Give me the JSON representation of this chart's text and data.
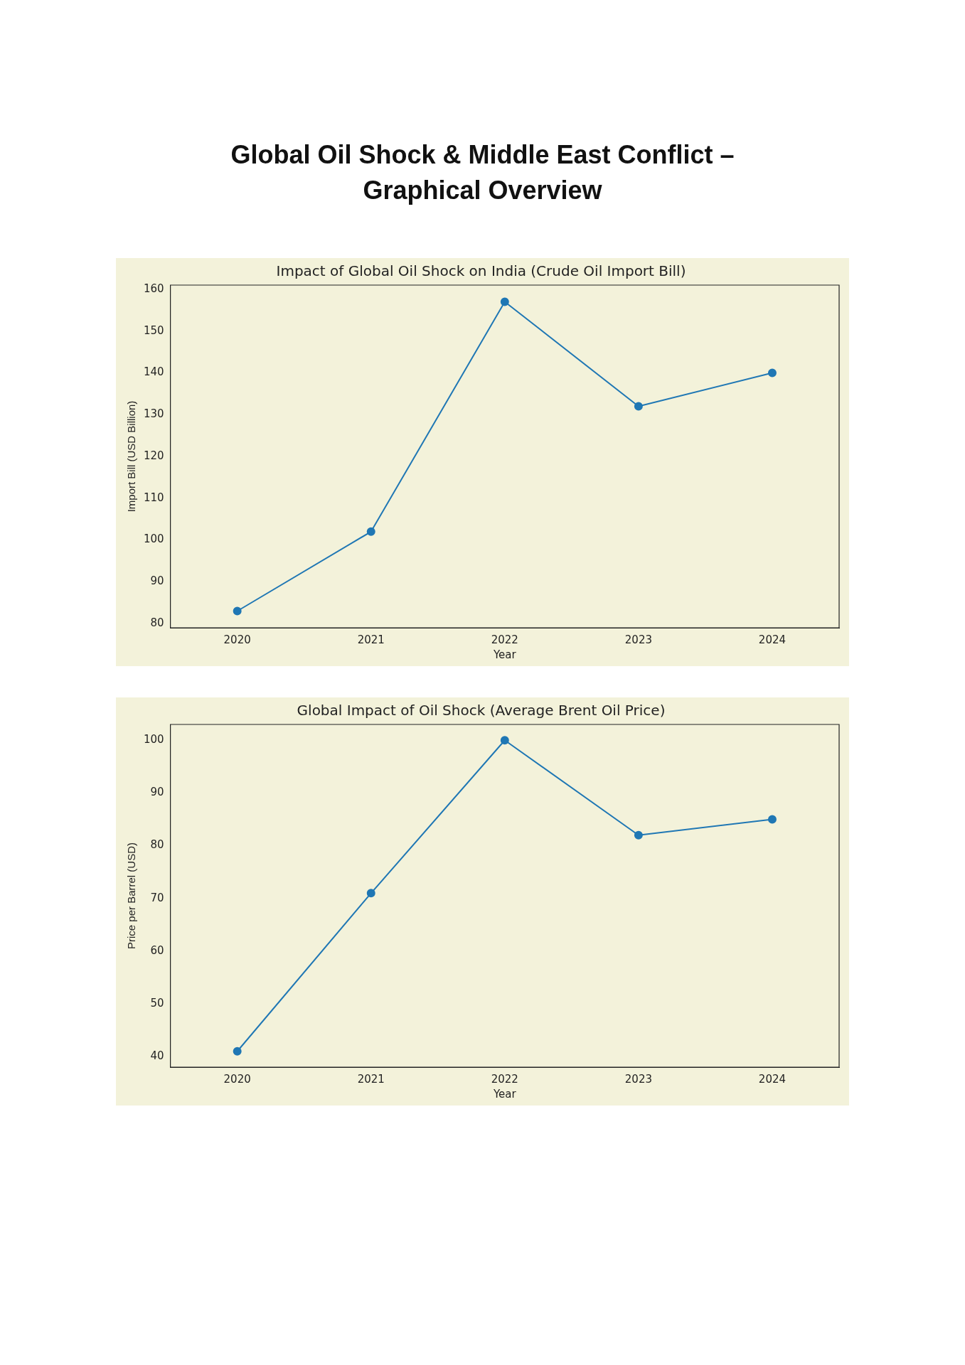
{
  "chart_data": [
    {
      "type": "line",
      "title": "Global Oil Shock & Middle East Conflict – Graphical Overview",
      "subtitle": "Impact of Global Oil Shock on India (Crude Oil Import Bill)",
      "xlabel": "Year",
      "ylabel": "Import Bill (USD Billion)",
      "categories": [
        "2020",
        "2021",
        "2022",
        "2023",
        "2024"
      ],
      "series": [
        {
          "color": "#1f77b4",
          "values": [
            83,
            102,
            157,
            132,
            140
          ]
        }
      ],
      "ylim": [
        79,
        161
      ],
      "yticks": [
        80,
        90,
        100,
        110,
        120,
        130,
        140,
        150,
        160
      ],
      "grid": false,
      "legend": false,
      "marker": "circle"
    },
    {
      "type": "line",
      "title": "Global Impact of Oil Shock (Average Brent Oil Price)",
      "xlabel": "Year",
      "ylabel": "Price per Barrel (USD)",
      "categories": [
        "2020",
        "2021",
        "2022",
        "2023",
        "2024"
      ],
      "series": [
        {
          "color": "#1f77b4",
          "values": [
            41,
            71,
            100,
            82,
            85
          ]
        }
      ],
      "ylim": [
        38,
        103
      ],
      "yticks": [
        40,
        50,
        60,
        70,
        80,
        90,
        100
      ],
      "grid": false,
      "legend": false,
      "marker": "circle"
    }
  ]
}
